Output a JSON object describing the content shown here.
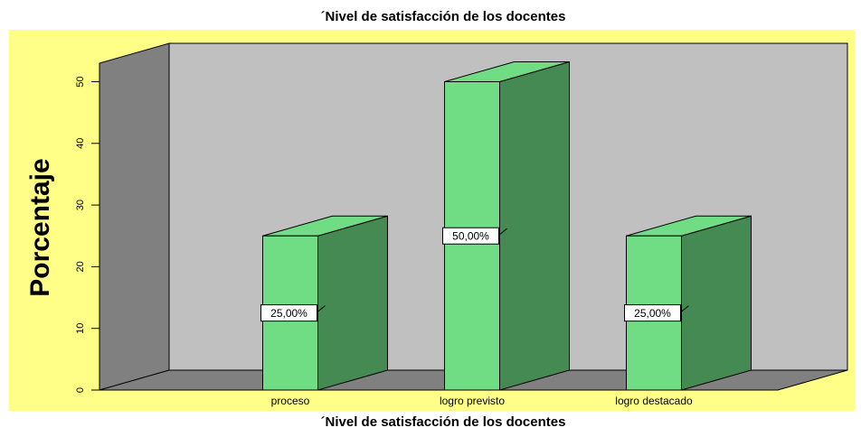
{
  "chart_data": {
    "type": "bar3d",
    "title": "´Nivel de satisfacción de los docentes",
    "x_label": "´Nivel de satisfacción de los docentes",
    "y_label": "Porcentaje",
    "categories": [
      "proceso",
      "logro previsto",
      "logro destacado"
    ],
    "values": [
      25,
      50,
      25
    ],
    "value_labels": [
      "25,00%",
      "50,00%",
      "25,00%"
    ],
    "color": "#70dc84",
    "ylim": [
      0,
      53
    ],
    "yticks": [
      0,
      10,
      20,
      30,
      40,
      50
    ]
  }
}
